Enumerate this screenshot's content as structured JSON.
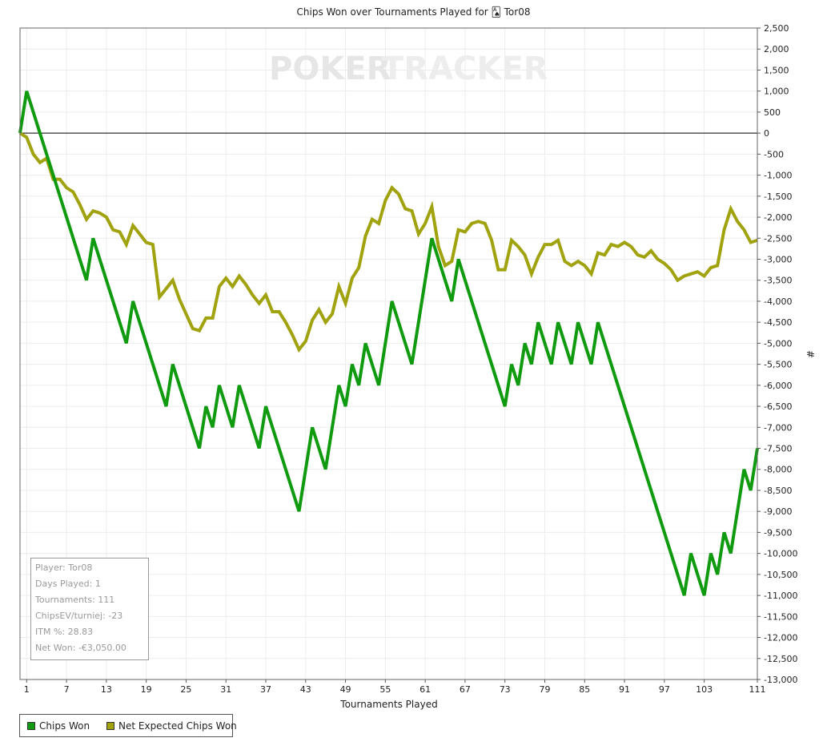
{
  "title": "Chips Won over Tournaments Played for 🂡 Tor08",
  "watermark": {
    "left": "POKER",
    "right": "TRACKER"
  },
  "info": {
    "player": "Player: Tor08",
    "days": "Days Played: 1",
    "tournaments": "Tournaments: 111",
    "chipsev": "ChipsEV/turniej: -23",
    "itm": "ITM %: 28.83",
    "net": "Net Won: -€3,050.00"
  },
  "legend": [
    {
      "label": "Chips Won",
      "color": "#0f9a0f"
    },
    {
      "label": "Net Expected Chips Won",
      "color": "#a0a20e"
    }
  ],
  "chart_data": {
    "type": "line",
    "xlabel": "Tournaments Played",
    "ylabel": "#",
    "xlim": [
      0,
      111
    ],
    "ylim": [
      -13000,
      2500
    ],
    "x_ticks": [
      1,
      7,
      13,
      19,
      25,
      31,
      37,
      43,
      49,
      55,
      61,
      67,
      73,
      79,
      85,
      91,
      97,
      103,
      111
    ],
    "y_ticks": [
      2500,
      2000,
      1500,
      1000,
      500,
      0,
      -500,
      -1000,
      -1500,
      -2000,
      -2500,
      -3000,
      -3500,
      -4000,
      -4500,
      -5000,
      -5500,
      -6000,
      -6500,
      -7000,
      -7500,
      -8000,
      -8500,
      -9000,
      -9500,
      -10000,
      -10500,
      -11000,
      -11500,
      -12000,
      -12500,
      -13000
    ],
    "y_tick_labels": [
      "2,500",
      "2,000",
      "1,500",
      "1,000",
      "500",
      "0",
      "-500",
      "-1,000",
      "-1,500",
      "-2,000",
      "-2,500",
      "-3,000",
      "-3,500",
      "-4,000",
      "-4,500",
      "-5,000",
      "-5,500",
      "-6,000",
      "-6,500",
      "-7,000",
      "-7,500",
      "-8,000",
      "-8,500",
      "-9,000",
      "-9,500",
      "-10,000",
      "-10,500",
      "-11,000",
      "-11,500",
      "-12,000",
      "-12,500",
      "-13,000"
    ],
    "grid": true,
    "legend_position": "bottom-left",
    "series": [
      {
        "name": "Chips Won",
        "color": "#0f9a0f",
        "x": [
          0,
          1,
          10,
          11,
          16,
          17,
          22,
          23,
          27,
          28,
          29,
          30,
          32,
          33,
          36,
          37,
          42,
          44,
          46,
          48,
          49,
          50,
          51,
          52,
          54,
          56,
          59,
          62,
          65,
          66,
          73,
          74,
          75,
          76,
          77,
          78,
          80,
          81,
          83,
          84,
          85,
          86,
          87,
          100,
          101,
          103,
          104,
          105,
          106,
          107,
          109,
          110,
          111
        ],
        "y": [
          0,
          1000,
          -3500,
          -2500,
          -5000,
          -4000,
          -6500,
          -5500,
          -7500,
          -6500,
          -7000,
          -6000,
          -7000,
          -6000,
          -7500,
          -6500,
          -9000,
          -7000,
          -8000,
          -6000,
          -6500,
          -5500,
          -6000,
          -5000,
          -6000,
          -4000,
          -5500,
          -2500,
          -4000,
          -3000,
          -6500,
          -5500,
          -6000,
          -5000,
          -5500,
          -4500,
          -5500,
          -4500,
          -5500,
          -4500,
          -5000,
          -5500,
          -4500,
          -11000,
          -10000,
          -11000,
          -10000,
          -10500,
          -9500,
          -10000,
          -8000,
          -8500,
          -7500
        ]
      },
      {
        "name": "Net Expected Chips Won",
        "color": "#a0a20e",
        "x": [
          0,
          1,
          2,
          3,
          4,
          5,
          6,
          7,
          8,
          9,
          10,
          11,
          12,
          13,
          14,
          15,
          16,
          17,
          18,
          19,
          20,
          21,
          22,
          23,
          24,
          25,
          26,
          27,
          28,
          29,
          30,
          31,
          32,
          33,
          34,
          35,
          36,
          37,
          38,
          39,
          40,
          41,
          42,
          43,
          44,
          45,
          46,
          47,
          48,
          49,
          50,
          51,
          52,
          53,
          54,
          55,
          56,
          57,
          58,
          59,
          60,
          61,
          62,
          63,
          64,
          65,
          66,
          67,
          68,
          69,
          70,
          71,
          72,
          73,
          74,
          75,
          76,
          77,
          78,
          79,
          80,
          81,
          82,
          83,
          84,
          85,
          86,
          87,
          88,
          89,
          90,
          91,
          92,
          93,
          94,
          95,
          96,
          97,
          98,
          99,
          100,
          101,
          102,
          103,
          104,
          105,
          106,
          107,
          108,
          109,
          110,
          111
        ],
        "y": [
          0,
          -100,
          -500,
          -700,
          -600,
          -1100,
          -1100,
          -1300,
          -1400,
          -1700,
          -2050,
          -1850,
          -1900,
          -2000,
          -2300,
          -2350,
          -2650,
          -2200,
          -2400,
          -2600,
          -2650,
          -3900,
          -3700,
          -3500,
          -3950,
          -4300,
          -4650,
          -4700,
          -4400,
          -4400,
          -3650,
          -3450,
          -3650,
          -3400,
          -3600,
          -3850,
          -4050,
          -3850,
          -4250,
          -4250,
          -4500,
          -4800,
          -5150,
          -4950,
          -4450,
          -4200,
          -4500,
          -4300,
          -3650,
          -4050,
          -3450,
          -3200,
          -2450,
          -2050,
          -2150,
          -1600,
          -1300,
          -1450,
          -1800,
          -1850,
          -2400,
          -2150,
          -1750,
          -2700,
          -3150,
          -3050,
          -2300,
          -2350,
          -2150,
          -2100,
          -2150,
          -2550,
          -3250,
          -3250,
          -2550,
          -2700,
          -2900,
          -3350,
          -2950,
          -2650,
          -2650,
          -2550,
          -3050,
          -3150,
          -3050,
          -3150,
          -3350,
          -2850,
          -2900,
          -2650,
          -2700,
          -2600,
          -2700,
          -2900,
          -2950,
          -2800,
          -3000,
          -3100,
          -3250,
          -3500,
          -3400,
          -3350,
          -3300,
          -3400,
          -3200,
          -3150,
          -2300,
          -1800,
          -2100,
          -2300,
          -2600,
          -2550
        ]
      }
    ]
  }
}
